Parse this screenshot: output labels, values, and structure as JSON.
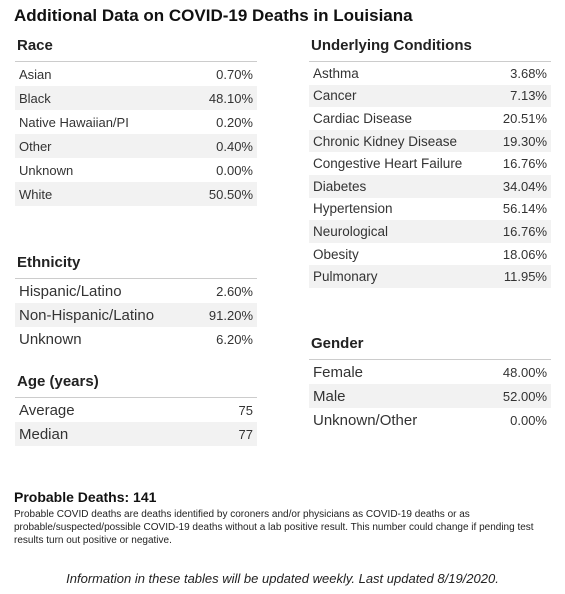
{
  "title": "Additional Data on COVID-19 Deaths in Louisiana",
  "sections": {
    "race": {
      "heading": "Race",
      "rows": [
        [
          "Asian",
          "0.70%"
        ],
        [
          "Black",
          "48.10%"
        ],
        [
          "Native Hawaiian/PI",
          "0.20%"
        ],
        [
          "Other",
          "0.40%"
        ],
        [
          "Unknown",
          "0.00%"
        ],
        [
          "White",
          "50.50%"
        ]
      ]
    },
    "ethnicity": {
      "heading": "Ethnicity",
      "rows": [
        [
          "Hispanic/Latino",
          "2.60%"
        ],
        [
          "Non-Hispanic/Latino",
          "91.20%"
        ],
        [
          "Unknown",
          "6.20%"
        ]
      ]
    },
    "age": {
      "heading": "Age (years)",
      "rows": [
        [
          "Average",
          "75"
        ],
        [
          "Median",
          "77"
        ]
      ]
    },
    "conditions": {
      "heading": "Underlying Conditions",
      "rows": [
        [
          "Asthma",
          "3.68%"
        ],
        [
          "Cancer",
          "7.13%"
        ],
        [
          "Cardiac Disease",
          "20.51%"
        ],
        [
          "Chronic Kidney Disease",
          "19.30%"
        ],
        [
          "Congestive Heart Failure",
          "16.76%"
        ],
        [
          "Diabetes",
          "34.04%"
        ],
        [
          "Hypertension",
          "56.14%"
        ],
        [
          "Neurological",
          "16.76%"
        ],
        [
          "Obesity",
          "18.06%"
        ],
        [
          "Pulmonary",
          "11.95%"
        ]
      ]
    },
    "gender": {
      "heading": "Gender",
      "rows": [
        [
          "Female",
          "48.00%"
        ],
        [
          "Male",
          "52.00%"
        ],
        [
          "Unknown/Other",
          "0.00%"
        ]
      ]
    }
  },
  "probable_deaths": "Probable Deaths: 141",
  "note": "Probable COVID deaths are deaths identified by coroners and/or physicians as COVID-19 deaths or as probable/suspected/possible COVID-19 deaths without a lab positive result. This number could change if pending test results turn out positive or negative.",
  "footer": "Information in these tables will be updated weekly. Last updated 8/19/2020."
}
